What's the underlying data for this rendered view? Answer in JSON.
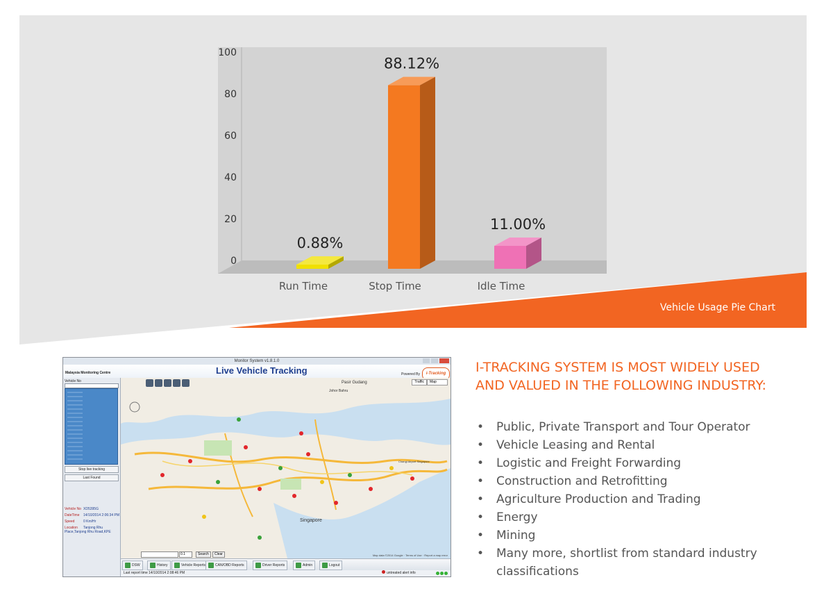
{
  "chart_data": {
    "type": "bar",
    "title": "",
    "xlabel": "",
    "ylabel": "",
    "categories": [
      "Run Time",
      "Stop Time",
      "Idle Time"
    ],
    "values": [
      0.88,
      88.12,
      11.0
    ],
    "data_labels": [
      "0.88%",
      "88.12%",
      "11.00%"
    ],
    "colors": [
      "#f0e000",
      "#f47920",
      "#ef71b5"
    ],
    "ylim": [
      0,
      100
    ],
    "yticks": [
      0,
      20,
      40,
      60,
      80,
      100
    ],
    "grid": false,
    "style": "3d",
    "caption": "Vehicle Usage Pie Chart"
  },
  "colors": {
    "accent": "#f26522",
    "panel_grey": "#e6e6e6",
    "plot_bg": "#d3d3d3"
  },
  "app_screenshot": {
    "window_title": "Monitor System v1.8.1.0",
    "centre_name": "Malaysia Monitoring Centre",
    "title": "Live Vehicle Tracking",
    "powered_by": "Powered By",
    "brand": "i-Tracking",
    "vehicle_label": "Vehicle No",
    "map_toggle": [
      "Traffic",
      "Map"
    ],
    "buttons": {
      "stop_tracking": "Stop live tracking",
      "last_found": "Last Found",
      "search": "Search",
      "clear": "Clear"
    },
    "km_value": "0.1",
    "info": [
      {
        "label": "Vehicle No",
        "value": "XD5395G"
      },
      {
        "label": "DateTime",
        "value": "14/10/2014 2:06:34 PM"
      },
      {
        "label": "Speed",
        "value": "0  Km/Hr"
      },
      {
        "label": "Location",
        "value": "Tanjong Rhu Place,Tanjong Rhu Road,KPE"
      }
    ],
    "nav": [
      "DSW",
      "History",
      "Vehicle Reports",
      "CAN/OBD Reports",
      "Driver Reports",
      "Admin",
      "Logout"
    ],
    "map_labels": {
      "city": "Singapore",
      "place1": "Pasir Gudang",
      "place2": "Johor Bahru",
      "place3": "Changi Airport Singapore"
    },
    "map_attribution": "Map data ©2014 Google · Terms of Use · Report a map error",
    "status_left": "Last report time 14/10/2014 2:08:46 PM",
    "status_right": "untreated alert info"
  },
  "industry": {
    "heading_line1": "I-TRACKING SYSTEM IS MOST WIDELY USED",
    "heading_line2": "AND VALUED IN THE FOLLOWING INDUSTRY:",
    "items": [
      "Public, Private Transport and Tour Operator",
      "Vehicle Leasing and Rental",
      "Logistic and Freight Forwarding",
      "Construction and Retrofitting",
      "Agriculture Production and Trading",
      "Energy",
      "Mining",
      "Many more, shortlist from standard industry classifications"
    ]
  }
}
